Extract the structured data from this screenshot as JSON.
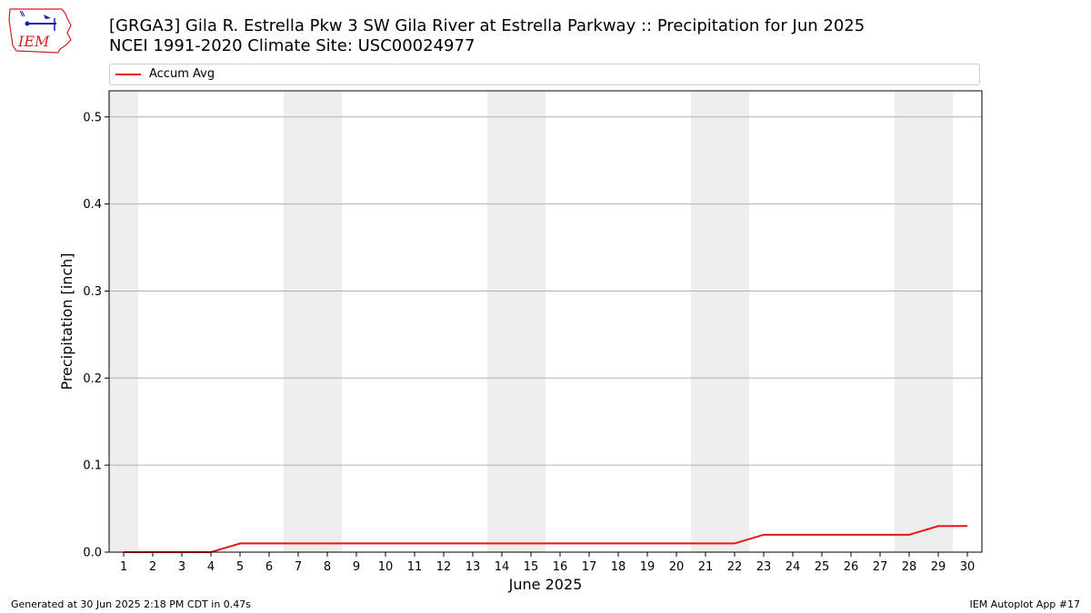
{
  "header": {
    "title_line1": "[GRGA3] Gila R. Estrella Pkw 3 SW Gila River at Estrella Parkway :: Precipitation for Jun 2025",
    "title_line2": "NCEI 1991-2020 Climate Site: USC00024977"
  },
  "logo": {
    "text": "IEM"
  },
  "footer": {
    "left": "Generated at 30 Jun 2025 2:18 PM CDT in 0.47s",
    "right": "IEM Autoplot App #17"
  },
  "colors": {
    "line": "#e8141a",
    "weekend_shade": "#eeeeee",
    "grid": "#b0b0b0",
    "logo_red": "#d32020",
    "logo_blue": "#1a1ab0"
  },
  "chart_data": {
    "type": "line",
    "xlabel": "June 2025",
    "ylabel": "Precipitation [inch]",
    "xlim": [
      0.5,
      30.5
    ],
    "ylim": [
      0,
      0.53
    ],
    "yticks": [
      0.0,
      0.1,
      0.2,
      0.3,
      0.4,
      0.5
    ],
    "ytick_labels": [
      "0.0",
      "0.1",
      "0.2",
      "0.3",
      "0.4",
      "0.5"
    ],
    "categories": [
      "1",
      "2",
      "3",
      "4",
      "5",
      "6",
      "7",
      "8",
      "9",
      "10",
      "11",
      "12",
      "13",
      "14",
      "15",
      "16",
      "17",
      "18",
      "19",
      "20",
      "21",
      "22",
      "23",
      "24",
      "25",
      "26",
      "27",
      "28",
      "29",
      "30"
    ],
    "grid": "horizontal",
    "legend_position": "top",
    "shaded_days": [
      1,
      7,
      8,
      14,
      15,
      21,
      22,
      28,
      29
    ],
    "series": [
      {
        "name": "Accum Avg",
        "x": [
          1,
          2,
          3,
          4,
          5,
          6,
          7,
          8,
          9,
          10,
          11,
          12,
          13,
          14,
          15,
          16,
          17,
          18,
          19,
          20,
          21,
          22,
          23,
          24,
          25,
          26,
          27,
          28,
          29,
          30
        ],
        "values": [
          0,
          0,
          0,
          0,
          0.01,
          0.01,
          0.01,
          0.01,
          0.01,
          0.01,
          0.01,
          0.01,
          0.01,
          0.01,
          0.01,
          0.01,
          0.01,
          0.01,
          0.01,
          0.01,
          0.01,
          0.01,
          0.02,
          0.02,
          0.02,
          0.02,
          0.02,
          0.02,
          0.03,
          0.03
        ]
      }
    ]
  }
}
